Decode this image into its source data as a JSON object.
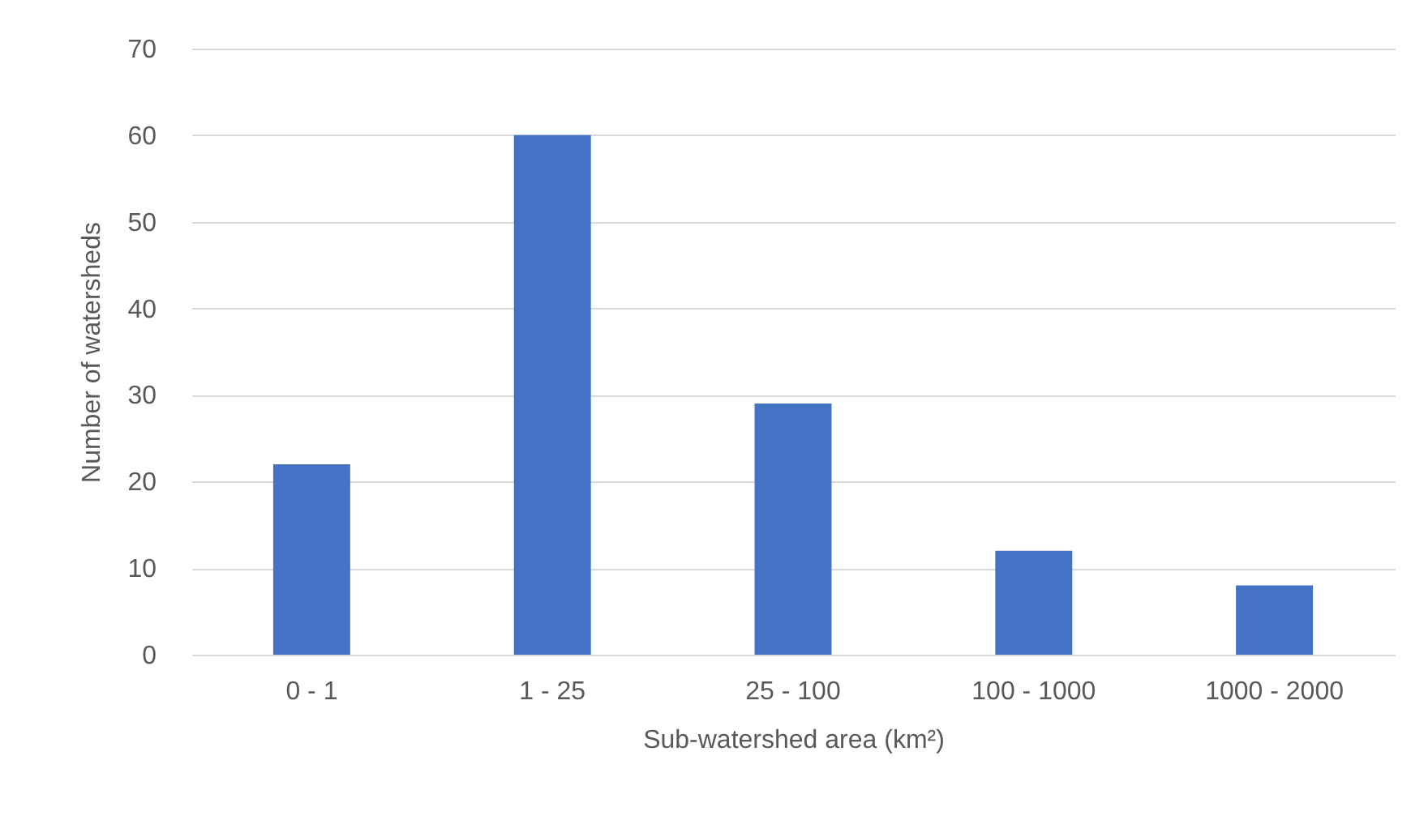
{
  "chart_data": {
    "type": "bar",
    "xlabel": "Sub-watershed area (km²)",
    "ylabel": "Number of watersheds",
    "categories": [
      "0 - 1",
      "1 - 25",
      "25 - 100",
      "100 - 1000",
      "1000 - 2000"
    ],
    "values": [
      22,
      60,
      29,
      12,
      8
    ],
    "color": "#4472c4",
    "ylim": [
      0,
      70
    ],
    "yticks": [
      0,
      10,
      20,
      30,
      40,
      50,
      60,
      70
    ],
    "grid": "y"
  }
}
